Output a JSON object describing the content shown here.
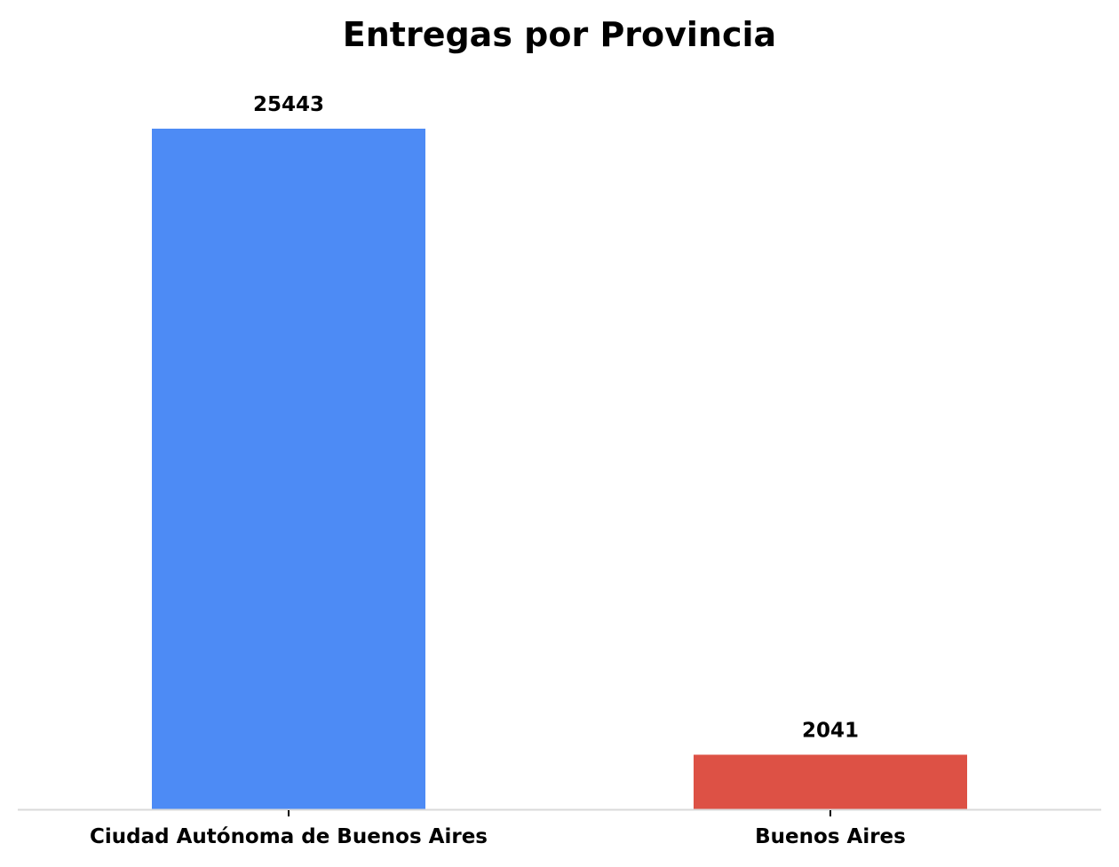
{
  "chart_data": {
    "type": "bar",
    "title": "Entregas por Provincia",
    "xlabel": "",
    "ylabel": "",
    "categories": [
      "Ciudad Autónoma de Buenos Aires",
      "Buenos Aires"
    ],
    "values": [
      25443,
      2041
    ],
    "data_labels": [
      "25443",
      "2041"
    ],
    "colors": [
      "#4D8BF5",
      "#DD5145"
    ],
    "ylim": [
      0,
      25443
    ],
    "grid": false,
    "legend": "none"
  },
  "style": {
    "axis_color": "#D9D9D9",
    "tick_color": "#000000",
    "text_color": "#000000"
  }
}
